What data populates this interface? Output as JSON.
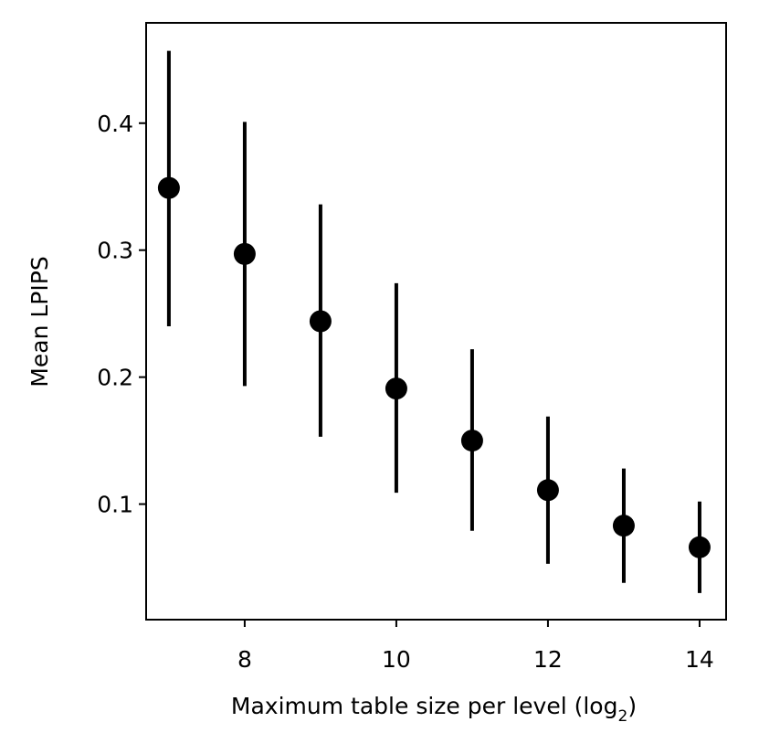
{
  "chart_data": {
    "type": "scatter",
    "subtype": "errorbar",
    "title": "",
    "xlabel": "Maximum table size per level (log",
    "xlabel_subscript": "2",
    "xlabel_suffix": ")",
    "ylabel": "Mean LPIPS",
    "xlim": [
      6.7,
      14.35
    ],
    "ylim": [
      0.009,
      0.479
    ],
    "xticks": [
      8,
      10,
      12,
      14
    ],
    "xtick_labels": [
      "8",
      "10",
      "12",
      "14"
    ],
    "yticks": [
      0.1,
      0.2,
      0.3,
      0.4
    ],
    "ytick_labels": [
      "0.1",
      "0.2",
      "0.3",
      "0.4"
    ],
    "grid": false,
    "legend": "none",
    "marker_color": "#000000",
    "points": [
      {
        "x": 7,
        "y": 0.349,
        "lower": 0.24,
        "upper": 0.457
      },
      {
        "x": 8,
        "y": 0.297,
        "lower": 0.193,
        "upper": 0.401
      },
      {
        "x": 9,
        "y": 0.244,
        "lower": 0.153,
        "upper": 0.336
      },
      {
        "x": 10,
        "y": 0.191,
        "lower": 0.109,
        "upper": 0.274
      },
      {
        "x": 11,
        "y": 0.15,
        "lower": 0.079,
        "upper": 0.222
      },
      {
        "x": 12,
        "y": 0.111,
        "lower": 0.053,
        "upper": 0.169
      },
      {
        "x": 13,
        "y": 0.083,
        "lower": 0.038,
        "upper": 0.128
      },
      {
        "x": 14,
        "y": 0.066,
        "lower": 0.03,
        "upper": 0.102
      }
    ]
  }
}
